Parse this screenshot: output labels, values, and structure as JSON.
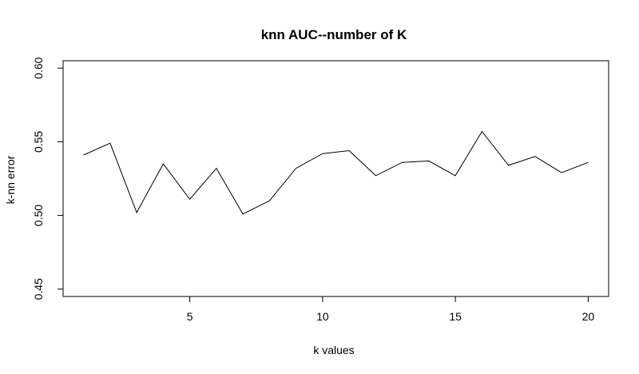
{
  "chart_data": {
    "type": "line",
    "title": "knn AUC--number of K",
    "xlabel": "k values",
    "ylabel": "k-nn error",
    "xlim": [
      0.23,
      20.77
    ],
    "ylim": [
      0.445,
      0.605
    ],
    "xticks": [
      5,
      10,
      15,
      20
    ],
    "xtick_labels": [
      "5",
      "10",
      "15",
      "20"
    ],
    "yticks": [
      0.45,
      0.5,
      0.55,
      0.6
    ],
    "ytick_labels": [
      "0.45",
      "0.50",
      "0.55",
      "0.60"
    ],
    "grid": false,
    "legend": "none",
    "line_color": "#000000",
    "x": [
      1,
      2,
      3,
      4,
      5,
      6,
      7,
      8,
      9,
      10,
      11,
      12,
      13,
      14,
      15,
      16,
      17,
      18,
      19,
      20
    ],
    "y": [
      0.541,
      0.549,
      0.502,
      0.535,
      0.511,
      0.532,
      0.501,
      0.51,
      0.532,
      0.542,
      0.544,
      0.527,
      0.536,
      0.537,
      0.527,
      0.557,
      0.534,
      0.54,
      0.529,
      0.536
    ]
  }
}
